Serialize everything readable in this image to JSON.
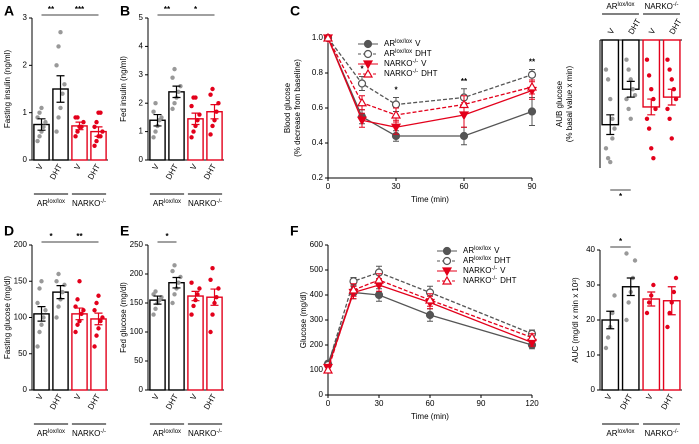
{
  "chart_data": [
    {
      "type": "bar",
      "panel": "A",
      "ylabel": [
        "Fasting insulin (ng/ml)"
      ],
      "categories": [
        "V",
        "DHT",
        "V",
        "DHT"
      ],
      "values": [
        0.75,
        1.5,
        0.72,
        0.6
      ],
      "errors": [
        0.12,
        0.28,
        0.08,
        0.1
      ],
      "points": [
        [
          0.4,
          0.5,
          0.6,
          0.7,
          0.8,
          0.9,
          1.0,
          1.1
        ],
        [
          0.6,
          0.9,
          1.1,
          1.4,
          1.6,
          2.0,
          2.4,
          2.7
        ],
        [
          0.5,
          0.6,
          0.7,
          0.7,
          0.8,
          0.9,
          0.9
        ],
        [
          0.3,
          0.4,
          0.5,
          0.5,
          0.6,
          0.7,
          0.8,
          1.0,
          1.0
        ]
      ],
      "bar_colors": [
        "#000000",
        "#000000",
        "#e3001b",
        "#e3001b"
      ],
      "point_colors": [
        "#999999",
        "#999999",
        "#e3001b",
        "#e3001b"
      ],
      "groups": [
        {
          "name": "AR",
          "sup": "lox/lox"
        },
        {
          "name": "NARKO",
          "sup": "-/-"
        }
      ],
      "significance": [
        {
          "label": "**",
          "from": 0,
          "to": 1
        },
        {
          "label": "***",
          "from": 1,
          "to": 3
        }
      ],
      "ylim": [
        0,
        3
      ],
      "yticks": [
        0,
        1,
        2,
        3
      ]
    },
    {
      "type": "bar",
      "panel": "B",
      "ylabel": [
        "Fed insulin (ng/ml)"
      ],
      "categories": [
        "V",
        "DHT",
        "V",
        "DHT"
      ],
      "values": [
        1.4,
        2.4,
        1.45,
        1.7
      ],
      "errors": [
        0.2,
        0.2,
        0.2,
        0.25
      ],
      "points": [
        [
          0.8,
          1.0,
          1.2,
          1.4,
          1.5,
          1.7,
          2.0
        ],
        [
          1.8,
          2.0,
          2.2,
          2.4,
          2.6,
          2.9,
          3.2
        ],
        [
          0.8,
          1.0,
          1.2,
          1.4,
          1.6,
          1.9,
          2.2,
          2.2
        ],
        [
          0.9,
          1.2,
          1.4,
          1.7,
          2.0,
          2.3,
          2.5
        ]
      ],
      "bar_colors": [
        "#000000",
        "#000000",
        "#e3001b",
        "#e3001b"
      ],
      "point_colors": [
        "#999999",
        "#999999",
        "#e3001b",
        "#e3001b"
      ],
      "groups": [
        {
          "name": "AR",
          "sup": "lox/lox"
        },
        {
          "name": "NARKO",
          "sup": "-/-"
        }
      ],
      "significance": [
        {
          "label": "**",
          "from": 0,
          "to": 1
        },
        {
          "label": "*",
          "from": 1,
          "to": 3
        }
      ],
      "ylim": [
        0,
        5
      ],
      "yticks": [
        0,
        1,
        2,
        3,
        4,
        5
      ]
    },
    {
      "type": "line",
      "panel": "C",
      "ylabel": [
        "Blood glucose",
        "(% decrease from baseline)"
      ],
      "xlabel": "Time (min)",
      "x": [
        0,
        15,
        30,
        60,
        90
      ],
      "xlim": [
        0,
        90
      ],
      "xticks": [
        0,
        30,
        60,
        90
      ],
      "ylim": [
        0.2,
        1.0
      ],
      "yticks": [
        {
          "value": 0.2,
          "label": "0.2"
        },
        {
          "value": 0.4,
          "label": "0.4"
        },
        {
          "value": 0.6,
          "label": "0.6"
        },
        {
          "value": 0.8,
          "label": "0.8"
        },
        {
          "value": 1.0,
          "label": "1.0"
        }
      ],
      "legend": "top",
      "series": [
        {
          "name": "AR",
          "sup": "lox/lox",
          "label": "V",
          "color": "#555555",
          "dash": false,
          "marker": "circle-filled",
          "values": [
            1.0,
            0.55,
            0.44,
            0.44,
            0.58
          ],
          "errors": [
            0,
            0.04,
            0.03,
            0.05,
            0.08
          ]
        },
        {
          "name": "AR",
          "sup": "lox/lox",
          "label": "DHT",
          "color": "#555555",
          "dash": true,
          "marker": "circle-open",
          "values": [
            1.0,
            0.74,
            0.62,
            0.66,
            0.79
          ],
          "errors": [
            0,
            0.04,
            0.04,
            0.05,
            0.03
          ]
        },
        {
          "name": "NARKO",
          "sup": "-/-",
          "label": "V",
          "color": "#e3001b",
          "dash": false,
          "marker": "triangle-down",
          "values": [
            1.0,
            0.53,
            0.49,
            0.56,
            0.7
          ],
          "errors": [
            0,
            0.04,
            0.04,
            0.07,
            0.05
          ]
        },
        {
          "name": "NARKO",
          "sup": "-/-",
          "label": "DHT",
          "color": "#e3001b",
          "dash": true,
          "marker": "triangle-up-open",
          "values": [
            1.0,
            0.63,
            0.56,
            0.62,
            0.72
          ],
          "errors": [
            0,
            0.04,
            0.04,
            0.05,
            0.04
          ]
        }
      ],
      "annotations": [
        {
          "x": 15,
          "text": "*"
        },
        {
          "x": 30,
          "text": "*"
        },
        {
          "x": 60,
          "text": "**"
        },
        {
          "x": 90,
          "text": "**"
        }
      ]
    },
    {
      "type": "bar",
      "axis_top": true,
      "ylabel": [
        "AUB glucose",
        "(% basal value x min)"
      ],
      "categories": [
        "V",
        "DHT",
        "V",
        "DHT"
      ],
      "values": [
        -43,
        -25,
        -34,
        -29
      ],
      "errors": [
        5,
        4,
        4,
        4
      ],
      "points": [
        [
          -15,
          -20,
          -30,
          -40,
          -45,
          -55,
          -60,
          -62,
          -50
        ],
        [
          -10,
          -15,
          -20,
          -25,
          -28,
          -30,
          -35,
          -40
        ],
        [
          -10,
          -18,
          -25,
          -30,
          -35,
          -40,
          -45,
          -55,
          -60
        ],
        [
          -10,
          -15,
          -20,
          -25,
          -30,
          -35,
          -40,
          -50
        ]
      ],
      "bar_colors": [
        "#000000",
        "#000000",
        "#e3001b",
        "#e3001b"
      ],
      "point_colors": [
        "#999999",
        "#999999",
        "#e3001b",
        "#e3001b"
      ],
      "groups": [
        {
          "name": "AR",
          "sup": "lox/lox"
        },
        {
          "name": "NARKO",
          "sup": "-/-"
        }
      ],
      "significance": [
        {
          "label": "*",
          "from": 0,
          "to": 1
        }
      ],
      "ylim": [
        -65,
        0
      ]
    },
    {
      "type": "bar",
      "panel": "D",
      "ylabel": [
        "Fasting glucose (mg/dl)"
      ],
      "categories": [
        "V",
        "DHT",
        "V",
        "DHT"
      ],
      "values": [
        105,
        135,
        105,
        98
      ],
      "errors": [
        10,
        9,
        8,
        8
      ],
      "points": [
        [
          60,
          80,
          90,
          100,
          110,
          120,
          140,
          150
        ],
        [
          100,
          115,
          125,
          135,
          145,
          150,
          160
        ],
        [
          80,
          90,
          95,
          105,
          110,
          115,
          125,
          150
        ],
        [
          60,
          75,
          85,
          95,
          100,
          110,
          120,
          130
        ]
      ],
      "bar_colors": [
        "#000000",
        "#000000",
        "#e3001b",
        "#e3001b"
      ],
      "point_colors": [
        "#999999",
        "#999999",
        "#e3001b",
        "#e3001b"
      ],
      "groups": [
        {
          "name": "AR",
          "sup": "lox/lox"
        },
        {
          "name": "NARKO",
          "sup": "-/-"
        }
      ],
      "significance": [
        {
          "label": "*",
          "from": 0,
          "to": 1
        },
        {
          "label": "**",
          "from": 1,
          "to": 3
        }
      ],
      "ylim": [
        0,
        200
      ],
      "yticks": [
        0,
        50,
        100,
        150,
        200
      ]
    },
    {
      "type": "bar",
      "panel": "E",
      "ylabel": [
        "Fed glucose (mg/dl)"
      ],
      "categories": [
        "V",
        "DHT",
        "V",
        "DHT"
      ],
      "values": [
        155,
        185,
        162,
        160
      ],
      "errors": [
        7,
        9,
        8,
        14
      ],
      "points": [
        [
          130,
          140,
          150,
          155,
          160,
          165,
          170
        ],
        [
          150,
          165,
          175,
          185,
          195,
          205,
          215
        ],
        [
          130,
          145,
          155,
          165,
          175,
          185
        ],
        [
          100,
          130,
          150,
          160,
          175,
          190,
          210
        ]
      ],
      "bar_colors": [
        "#000000",
        "#000000",
        "#e3001b",
        "#e3001b"
      ],
      "point_colors": [
        "#999999",
        "#999999",
        "#e3001b",
        "#e3001b"
      ],
      "groups": [
        {
          "name": "AR",
          "sup": "lox/lox"
        },
        {
          "name": "NARKO",
          "sup": "-/-"
        }
      ],
      "significance": [
        {
          "label": "*",
          "from": 0,
          "to": 1
        }
      ],
      "ylim": [
        0,
        250
      ],
      "yticks": [
        0,
        50,
        100,
        150,
        200,
        250
      ]
    },
    {
      "type": "line",
      "panel": "F",
      "ylabel": [
        "Glucose (mg/dl)"
      ],
      "xlabel": "Time (min)",
      "x": [
        0,
        15,
        30,
        60,
        120
      ],
      "xlim": [
        0,
        120
      ],
      "xticks": [
        0,
        30,
        60,
        90,
        120
      ],
      "ylim": [
        0,
        600
      ],
      "yticks": [
        0,
        100,
        200,
        300,
        400,
        500,
        600
      ],
      "legend": "top-right",
      "series": [
        {
          "name": "AR",
          "sup": "lox/lox",
          "label": "V",
          "color": "#555555",
          "dash": false,
          "marker": "circle-filled",
          "values": [
            125,
            410,
            400,
            320,
            200
          ],
          "errors": [
            10,
            25,
            25,
            25,
            15
          ]
        },
        {
          "name": "AR",
          "sup": "lox/lox",
          "label": "DHT",
          "color": "#555555",
          "dash": true,
          "marker": "circle-open",
          "values": [
            120,
            455,
            490,
            410,
            245
          ],
          "errors": [
            10,
            15,
            25,
            25,
            15
          ]
        },
        {
          "name": "NARKO",
          "sup": "-/-",
          "label": "V",
          "color": "#e3001b",
          "dash": false,
          "marker": "triangle-down",
          "values": [
            110,
            410,
            440,
            370,
            210
          ],
          "errors": [
            10,
            25,
            25,
            25,
            15
          ]
        },
        {
          "name": "NARKO",
          "sup": "-/-",
          "label": "DHT",
          "color": "#e3001b",
          "dash": true,
          "marker": "triangle-up-open",
          "values": [
            100,
            420,
            460,
            380,
            230
          ],
          "errors": [
            10,
            25,
            25,
            25,
            15
          ]
        }
      ]
    },
    {
      "type": "bar",
      "ylabel": [
        "AUC (mg/dl x min x 10³)"
      ],
      "categories": [
        "V",
        "DHT",
        "V",
        "DHT"
      ],
      "values": [
        20,
        29.5,
        26,
        25.5
      ],
      "errors": [
        2.5,
        2.5,
        2,
        4
      ],
      "points": [
        [
          12,
          15,
          18,
          22,
          27
        ],
        [
          20,
          25,
          28,
          32,
          37,
          39
        ],
        [
          22,
          25,
          27,
          30
        ],
        [
          18,
          22,
          25,
          28,
          32
        ]
      ],
      "bar_colors": [
        "#000000",
        "#000000",
        "#e3001b",
        "#e3001b"
      ],
      "point_colors": [
        "#999999",
        "#999999",
        "#e3001b",
        "#e3001b"
      ],
      "groups": [
        {
          "name": "AR",
          "sup": "lox/lox"
        },
        {
          "name": "NARKO",
          "sup": "-/-"
        }
      ],
      "significance": [
        {
          "label": "*",
          "from": 0,
          "to": 1
        }
      ],
      "ylim": [
        0,
        40
      ],
      "yticks": [
        0,
        10,
        20,
        30,
        40
      ]
    }
  ]
}
